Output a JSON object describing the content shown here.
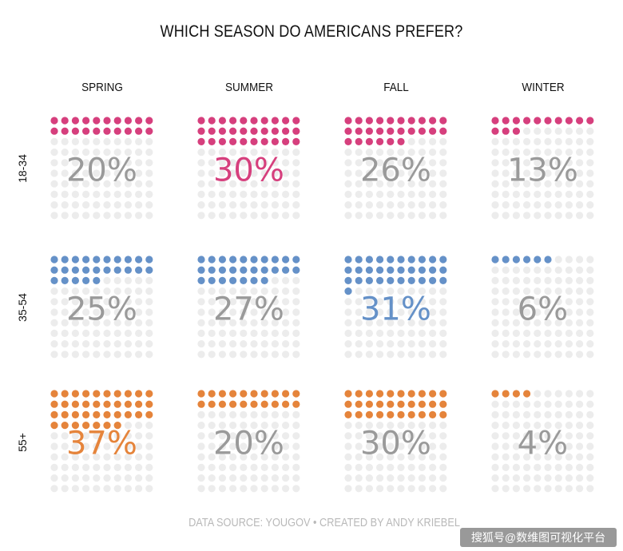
{
  "chart_data": {
    "type": "waffle",
    "title": "WHICH SEASON DO AMERICANS PREFER?",
    "columns": [
      "SPRING",
      "SUMMER",
      "FALL",
      "WINTER"
    ],
    "rows": [
      "18-34",
      "35-54",
      "55+"
    ],
    "values": [
      [
        20,
        30,
        26,
        13
      ],
      [
        25,
        27,
        31,
        6
      ],
      [
        37,
        20,
        30,
        4
      ]
    ],
    "labels": [
      [
        "20%",
        "30%",
        "26%",
        "13%"
      ],
      [
        "25%",
        "27%",
        "31%",
        "6%"
      ],
      [
        "37%",
        "20%",
        "30%",
        "4%"
      ]
    ],
    "units_per_grid": 100,
    "grid": "10x10",
    "row_colors": [
      "#d63f7d",
      "#6591c8",
      "#e5843b"
    ],
    "empty_color": "#ececec",
    "label_color": "#9a9a9a"
  },
  "footer": {
    "source": "DATA SOURCE: YOUGOV • CREATED BY ANDY KRIEBEL",
    "watermark": "搜狐号@数维图可视化平台"
  }
}
